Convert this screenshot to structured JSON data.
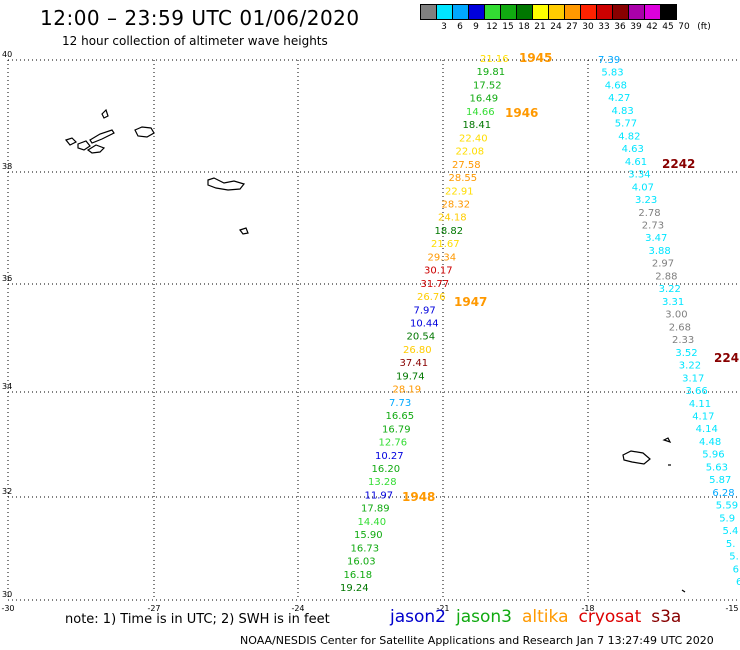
{
  "header": {
    "title": "12:00 – 23:59 UTC 01/06/2020",
    "subtitle": "12 hour collection of altimeter wave heights"
  },
  "scale": {
    "labels": [
      "3",
      "6",
      "9",
      "12",
      "15",
      "18",
      "21",
      "24",
      "27",
      "30",
      "33",
      "36",
      "39",
      "42",
      "45",
      "70",
      "(ft)"
    ],
    "colors": [
      "#808080",
      "#00e5ff",
      "#00a8ff",
      "#0000dd",
      "#33dd33",
      "#11aa11",
      "#007700",
      "#ffff00",
      "#ffcc00",
      "#ff9900",
      "#ff2200",
      "#cc0000",
      "#880000",
      "#aa00aa",
      "#dd00dd",
      "#000000"
    ]
  },
  "axes": {
    "lat_labels": [
      "40",
      "38",
      "36",
      "34",
      "32",
      "30"
    ],
    "lon_labels": [
      "-30",
      "-27",
      "-24",
      "-21",
      "-18",
      "-15"
    ]
  },
  "track_left": {
    "values": [
      "21.16",
      "19.81",
      "17.52",
      "16.49",
      "14.66",
      "18.41",
      "22.40",
      "22.08",
      "27.58",
      "28.55",
      "22.91",
      "28.32",
      "24.18",
      "18.82",
      "21.67",
      "29.34",
      "30.17",
      "31.77",
      "26.76",
      "7.97",
      "10.44",
      "20.54",
      "26.80",
      "37.41",
      "19.74",
      "28.19",
      "7.73",
      "16.65",
      "16.79",
      "12.76",
      "10.27",
      "16.20",
      "13.28",
      "11.97",
      "17.89",
      "14.40",
      "15.90",
      "16.73",
      "16.03",
      "16.18",
      "19.24"
    ],
    "colors": [
      "#ffdd00",
      "#11aa11",
      "#11aa11",
      "#11aa11",
      "#33dd33",
      "#007700",
      "#ffdd00",
      "#ffdd00",
      "#ff9900",
      "#ff9900",
      "#ffdd00",
      "#ff9900",
      "#ffcc00",
      "#007700",
      "#ffdd00",
      "#ff9900",
      "#cc0000",
      "#cc0000",
      "#ffcc00",
      "#0000dd",
      "#0000dd",
      "#007700",
      "#ffcc00",
      "#880000",
      "#007700",
      "#ff9900",
      "#00a8ff",
      "#11aa11",
      "#11aa11",
      "#33dd33",
      "#0000dd",
      "#11aa11",
      "#33dd33",
      "#0000dd",
      "#11aa11",
      "#33dd33",
      "#11aa11",
      "#11aa11",
      "#11aa11",
      "#11aa11",
      "#007700"
    ],
    "times": [
      "1945",
      "1946",
      "1947",
      "1948"
    ]
  },
  "track_right": {
    "values": [
      "7.39",
      "5.83",
      "4.68",
      "4.27",
      "4.83",
      "5.77",
      "4.82",
      "4.63",
      "4.61",
      "3.34",
      "4.07",
      "3.23",
      "2.78",
      "2.73",
      "3.47",
      "3.88",
      "2.97",
      "2.88",
      "3.22",
      "3.31",
      "3.00",
      "2.68",
      "2.33",
      "3.52",
      "3.22",
      "3.17",
      "3.66",
      "4.11",
      "4.17",
      "4.14",
      "4.48",
      "5.96",
      "5.63",
      "5.87",
      "6.28",
      "5.59",
      "5.9",
      "5.4",
      "5.",
      "5.",
      "6",
      "6"
    ],
    "colors": [
      "#00a8ff",
      "#00e5ff",
      "#00e5ff",
      "#00e5ff",
      "#00e5ff",
      "#00e5ff",
      "#00e5ff",
      "#00e5ff",
      "#00e5ff",
      "#00e5ff",
      "#00e5ff",
      "#00e5ff",
      "#808080",
      "#808080",
      "#00e5ff",
      "#00e5ff",
      "#808080",
      "#808080",
      "#00e5ff",
      "#00e5ff",
      "#808080",
      "#808080",
      "#808080",
      "#00e5ff",
      "#00e5ff",
      "#00e5ff",
      "#00e5ff",
      "#00e5ff",
      "#00e5ff",
      "#00e5ff",
      "#00e5ff",
      "#00e5ff",
      "#00e5ff",
      "#00e5ff",
      "#00a8ff",
      "#00e5ff",
      "#00e5ff",
      "#00e5ff",
      "#00e5ff",
      "#00e5ff",
      "#00e5ff",
      "#00e5ff"
    ],
    "times": [
      "2242",
      "224"
    ]
  },
  "footer": {
    "note": "note:  1) Time is in UTC;  2) SWH is in feet",
    "satellites": [
      {
        "name": "jason2",
        "color": "#0000cc"
      },
      {
        "name": "jason3",
        "color": "#11aa11"
      },
      {
        "name": "altika",
        "color": "#ff9900"
      },
      {
        "name": "cryosat",
        "color": "#dd0000"
      },
      {
        "name": "s3a",
        "color": "#880000"
      }
    ],
    "credit": "NOAA/NESDIS Center for Satellite Applications and Research    Jan  7 13:27:49 UTC 2020"
  }
}
